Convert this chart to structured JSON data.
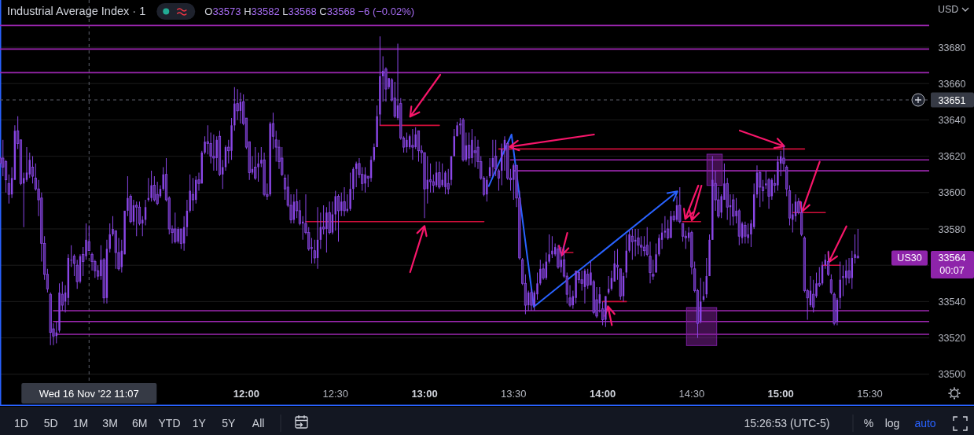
{
  "chart_data": {
    "type": "candlestick",
    "title": "Industrial Average Index · 1",
    "subtitle": "O33573 H33582 L33568 C33568 −6 (−0.02%)",
    "x": [
      "2022-11-16T10:37",
      "2022-11-16T10:38",
      "2022-11-16T10:39",
      "2022-11-16T10:40",
      "2022-11-16T10:41",
      "2022-11-16T10:42",
      "2022-11-16T10:43",
      "2022-11-16T10:44",
      "2022-11-16T10:45",
      "2022-11-16T10:46",
      "2022-11-16T10:47",
      "2022-11-16T10:48",
      "2022-11-16T10:49",
      "2022-11-16T10:50",
      "2022-11-16T10:51",
      "2022-11-16T10:52",
      "2022-11-16T10:53",
      "2022-11-16T10:54",
      "2022-11-16T10:55",
      "2022-11-16T10:56",
      "2022-11-16T10:57",
      "2022-11-16T10:58",
      "2022-11-16T10:59",
      "2022-11-16T11:00",
      "2022-11-16T11:01",
      "2022-11-16T11:02",
      "2022-11-16T11:03",
      "2022-11-16T11:04",
      "2022-11-16T11:05",
      "2022-11-16T11:06",
      "2022-11-16T11:07",
      "2022-11-16T11:08",
      "2022-11-16T11:09",
      "2022-11-16T11:10",
      "2022-11-16T11:11",
      "2022-11-16T11:12",
      "2022-11-16T11:13",
      "2022-11-16T11:14",
      "2022-11-16T11:15",
      "2022-11-16T11:16",
      "2022-11-16T11:17",
      "2022-11-16T11:18",
      "2022-11-16T11:19",
      "2022-11-16T11:20",
      "2022-11-16T11:21",
      "2022-11-16T11:22",
      "2022-11-16T11:23",
      "2022-11-16T11:24",
      "2022-11-16T11:25",
      "2022-11-16T11:26",
      "2022-11-16T11:27",
      "2022-11-16T11:28",
      "2022-11-16T11:29",
      "2022-11-16T11:30",
      "2022-11-16T11:31",
      "2022-11-16T11:32",
      "2022-11-16T11:33",
      "2022-11-16T11:34",
      "2022-11-16T11:35",
      "2022-11-16T11:36",
      "2022-11-16T11:37",
      "2022-11-16T11:38",
      "2022-11-16T11:39",
      "2022-11-16T11:40",
      "2022-11-16T11:41",
      "2022-11-16T11:42",
      "2022-11-16T11:43",
      "2022-11-16T11:44",
      "2022-11-16T11:45",
      "2022-11-16T11:46",
      "2022-11-16T11:47",
      "2022-11-16T11:48",
      "2022-11-16T11:49",
      "2022-11-16T11:50",
      "2022-11-16T11:51",
      "2022-11-16T11:52",
      "2022-11-16T11:53",
      "2022-11-16T11:54",
      "2022-11-16T11:55",
      "2022-11-16T11:56",
      "2022-11-16T11:57",
      "2022-11-16T11:58",
      "2022-11-16T11:59",
      "2022-11-16T12:00",
      "2022-11-16T12:01",
      "2022-11-16T12:02",
      "2022-11-16T12:03",
      "2022-11-16T12:04",
      "2022-11-16T12:05",
      "2022-11-16T12:06",
      "2022-11-16T12:07",
      "2022-11-16T12:08",
      "2022-11-16T12:09",
      "2022-11-16T12:10",
      "2022-11-16T12:11",
      "2022-11-16T12:12",
      "2022-11-16T12:13",
      "2022-11-16T12:14",
      "2022-11-16T12:15",
      "2022-11-16T12:16",
      "2022-11-16T12:17",
      "2022-11-16T12:18",
      "2022-11-16T12:19",
      "2022-11-16T12:20",
      "2022-11-16T12:21",
      "2022-11-16T12:22",
      "2022-11-16T12:23",
      "2022-11-16T12:24",
      "2022-11-16T12:25",
      "2022-11-16T12:26",
      "2022-11-16T12:27",
      "2022-11-16T12:28",
      "2022-11-16T12:29",
      "2022-11-16T12:30",
      "2022-11-16T12:31",
      "2022-11-16T12:32",
      "2022-11-16T12:33",
      "2022-11-16T12:34",
      "2022-11-16T12:35",
      "2022-11-16T12:36",
      "2022-11-16T12:37",
      "2022-11-16T12:38",
      "2022-11-16T12:39",
      "2022-11-16T12:40",
      "2022-11-16T12:41",
      "2022-11-16T12:42",
      "2022-11-16T12:43",
      "2022-11-16T12:44",
      "2022-11-16T12:45",
      "2022-11-16T12:46",
      "2022-11-16T12:47",
      "2022-11-16T12:48",
      "2022-11-16T12:49",
      "2022-11-16T12:50",
      "2022-11-16T12:51",
      "2022-11-16T12:52",
      "2022-11-16T12:53",
      "2022-11-16T12:54",
      "2022-11-16T12:55",
      "2022-11-16T12:56",
      "2022-11-16T12:57",
      "2022-11-16T12:58",
      "2022-11-16T12:59",
      "2022-11-16T13:00",
      "2022-11-16T13:01",
      "2022-11-16T13:02",
      "2022-11-16T13:03",
      "2022-11-16T13:04",
      "2022-11-16T13:05",
      "2022-11-16T13:06",
      "2022-11-16T13:07",
      "2022-11-16T13:08",
      "2022-11-16T13:09",
      "2022-11-16T13:10",
      "2022-11-16T13:11",
      "2022-11-16T13:12",
      "2022-11-16T13:13",
      "2022-11-16T13:14",
      "2022-11-16T13:15",
      "2022-11-16T13:16",
      "2022-11-16T13:17",
      "2022-11-16T13:18",
      "2022-11-16T13:19",
      "2022-11-16T13:20",
      "2022-11-16T13:21",
      "2022-11-16T13:22",
      "2022-11-16T13:23",
      "2022-11-16T13:24",
      "2022-11-16T13:25",
      "2022-11-16T13:26",
      "2022-11-16T13:27",
      "2022-11-16T13:28",
      "2022-11-16T13:29",
      "2022-11-16T13:30",
      "2022-11-16T13:31",
      "2022-11-16T13:32",
      "2022-11-16T13:33",
      "2022-11-16T13:34",
      "2022-11-16T13:35",
      "2022-11-16T13:36",
      "2022-11-16T13:37",
      "2022-11-16T13:38",
      "2022-11-16T13:39",
      "2022-11-16T13:40",
      "2022-11-16T13:41",
      "2022-11-16T13:42",
      "2022-11-16T13:43",
      "2022-11-16T13:44",
      "2022-11-16T13:45",
      "2022-11-16T13:46",
      "2022-11-16T13:47",
      "2022-11-16T13:48",
      "2022-11-16T13:49",
      "2022-11-16T13:50",
      "2022-11-16T13:51",
      "2022-11-16T13:52",
      "2022-11-16T13:53",
      "2022-11-16T13:54",
      "2022-11-16T13:55",
      "2022-11-16T13:56",
      "2022-11-16T13:57",
      "2022-11-16T13:58",
      "2022-11-16T13:59",
      "2022-11-16T14:00",
      "2022-11-16T14:01",
      "2022-11-16T14:02",
      "2022-11-16T14:03",
      "2022-11-16T14:04",
      "2022-11-16T14:05",
      "2022-11-16T14:06",
      "2022-11-16T14:07",
      "2022-11-16T14:08",
      "2022-11-16T14:09",
      "2022-11-16T14:10",
      "2022-11-16T14:11",
      "2022-11-16T14:12",
      "2022-11-16T14:13",
      "2022-11-16T14:14",
      "2022-11-16T14:15",
      "2022-11-16T14:16",
      "2022-11-16T14:17",
      "2022-11-16T14:18",
      "2022-11-16T14:19",
      "2022-11-16T14:20",
      "2022-11-16T14:21",
      "2022-11-16T14:22",
      "2022-11-16T14:23",
      "2022-11-16T14:24",
      "2022-11-16T14:25",
      "2022-11-16T14:26",
      "2022-11-16T14:27",
      "2022-11-16T14:28",
      "2022-11-16T14:29",
      "2022-11-16T14:30",
      "2022-11-16T14:31",
      "2022-11-16T14:32",
      "2022-11-16T14:33",
      "2022-11-16T14:34",
      "2022-11-16T14:35",
      "2022-11-16T14:36",
      "2022-11-16T14:37",
      "2022-11-16T14:38",
      "2022-11-16T14:39",
      "2022-11-16T14:40",
      "2022-11-16T14:41",
      "2022-11-16T14:42",
      "2022-11-16T14:43",
      "2022-11-16T14:44",
      "2022-11-16T14:45",
      "2022-11-16T14:46",
      "2022-11-16T14:47",
      "2022-11-16T14:48",
      "2022-11-16T14:49",
      "2022-11-16T14:50",
      "2022-11-16T14:51",
      "2022-11-16T14:52",
      "2022-11-16T14:53",
      "2022-11-16T14:54",
      "2022-11-16T14:55",
      "2022-11-16T14:56",
      "2022-11-16T14:57",
      "2022-11-16T14:58",
      "2022-11-16T14:59",
      "2022-11-16T15:00",
      "2022-11-16T15:01",
      "2022-11-16T15:02",
      "2022-11-16T15:03",
      "2022-11-16T15:04",
      "2022-11-16T15:05",
      "2022-11-16T15:06",
      "2022-11-16T15:07",
      "2022-11-16T15:08",
      "2022-11-16T15:09",
      "2022-11-16T15:10",
      "2022-11-16T15:11",
      "2022-11-16T15:12",
      "2022-11-16T15:13",
      "2022-11-16T15:14",
      "2022-11-16T15:15",
      "2022-11-16T15:16",
      "2022-11-16T15:17",
      "2022-11-16T15:18",
      "2022-11-16T15:19",
      "2022-11-16T15:20",
      "2022-11-16T15:21",
      "2022-11-16T15:22",
      "2022-11-16T15:23",
      "2022-11-16T15:24",
      "2022-11-16T15:25",
      "2022-11-16T15:26"
    ],
    "ohlc": [
      [
        33619,
        33620,
        33614,
        33616
      ],
      [
        33619,
        33629,
        33609,
        33614
      ],
      [
        33617,
        33618,
        33600,
        33607
      ],
      [
        33605,
        33610,
        33594,
        33599
      ],
      [
        33599,
        33614,
        33597,
        33608
      ],
      [
        33607,
        33637,
        33607,
        33634
      ],
      [
        33634,
        33642,
        33624,
        33627
      ],
      [
        33629,
        33629,
        33604,
        33605
      ],
      [
        33605,
        33611,
        33581,
        33608
      ],
      [
        33607,
        33625,
        33606,
        33611
      ],
      [
        33610,
        33622,
        33608,
        33618
      ],
      [
        33614,
        33620,
        33605,
        33609
      ],
      [
        33608,
        33616,
        33601,
        33602
      ],
      [
        33602,
        33607,
        33587,
        33596
      ],
      [
        33597,
        33600,
        33562,
        33572
      ],
      [
        33572,
        33576,
        33552,
        33555
      ],
      [
        33555,
        33558,
        33545,
        33547
      ],
      [
        33544,
        33545,
        33516,
        33523
      ],
      [
        33525,
        33528,
        33516,
        33521
      ],
      [
        33521,
        33529,
        33517,
        33523
      ],
      [
        33524,
        33550,
        33523,
        33545
      ],
      [
        33544,
        33551,
        33535,
        33538
      ],
      [
        33540,
        33549,
        33534,
        33545
      ],
      [
        33542,
        33566,
        33538,
        33564
      ],
      [
        33563,
        33571,
        33559,
        33563
      ],
      [
        33565,
        33566,
        33554,
        33561
      ],
      [
        33560,
        33563,
        33547,
        33551
      ],
      [
        33551,
        33566,
        33550,
        33565
      ],
      [
        33566,
        33570,
        33554,
        33562
      ],
      [
        33565,
        33583,
        33563,
        33574
      ],
      [
        33573,
        33582,
        33568,
        33568
      ],
      [
        33566,
        33567,
        33557,
        33562
      ],
      [
        33562,
        33563,
        33553,
        33557
      ],
      [
        33557,
        33560,
        33552,
        33554
      ],
      [
        33554,
        33571,
        33552,
        33563
      ],
      [
        33563,
        33564,
        33539,
        33542
      ],
      [
        33542,
        33574,
        33539,
        33569
      ],
      [
        33569,
        33583,
        33567,
        33577
      ],
      [
        33577,
        33587,
        33576,
        33580
      ],
      [
        33579,
        33579,
        33558,
        33567
      ],
      [
        33567,
        33575,
        33557,
        33558
      ],
      [
        33559,
        33574,
        33556,
        33568
      ],
      [
        33566,
        33590,
        33566,
        33590
      ],
      [
        33590,
        33609,
        33587,
        33597
      ],
      [
        33598,
        33599,
        33583,
        33584
      ],
      [
        33584,
        33596,
        33582,
        33593
      ],
      [
        33593,
        33595,
        33576,
        33592
      ],
      [
        33592,
        33595,
        33582,
        33583
      ],
      [
        33583,
        33587,
        33576,
        33585
      ],
      [
        33585,
        33596,
        33582,
        33592
      ],
      [
        33596,
        33608,
        33595,
        33597
      ],
      [
        33597,
        33612,
        33595,
        33604
      ],
      [
        33604,
        33609,
        33595,
        33596
      ],
      [
        33599,
        33606,
        33593,
        33594
      ],
      [
        33598,
        33604,
        33597,
        33602
      ],
      [
        33602,
        33614,
        33601,
        33610
      ],
      [
        33610,
        33619,
        33595,
        33596
      ],
      [
        33597,
        33598,
        33577,
        33580
      ],
      [
        33580,
        33582,
        33572,
        33578
      ],
      [
        33580,
        33589,
        33572,
        33573
      ],
      [
        33573,
        33581,
        33572,
        33580
      ],
      [
        33580,
        33580,
        33569,
        33572
      ],
      [
        33572,
        33587,
        33568,
        33581
      ],
      [
        33581,
        33596,
        33576,
        33590
      ],
      [
        33590,
        33610,
        33589,
        33601
      ],
      [
        33599,
        33608,
        33590,
        33596
      ],
      [
        33596,
        33609,
        33594,
        33607
      ],
      [
        33607,
        33611,
        33601,
        33605
      ],
      [
        33605,
        33623,
        33605,
        33622
      ],
      [
        33622,
        33631,
        33621,
        33628
      ],
      [
        33628,
        33637,
        33621,
        33627
      ],
      [
        33627,
        33633,
        33616,
        33620
      ],
      [
        33620,
        33632,
        33612,
        33619
      ],
      [
        33619,
        33631,
        33612,
        33629
      ],
      [
        33631,
        33634,
        33609,
        33610
      ],
      [
        33610,
        33618,
        33602,
        33614
      ],
      [
        33614,
        33626,
        33612,
        33625
      ],
      [
        33625,
        33629,
        33616,
        33623
      ],
      [
        33623,
        33641,
        33618,
        33637
      ],
      [
        33637,
        33658,
        33634,
        33649
      ],
      [
        33649,
        33657,
        33640,
        33645
      ],
      [
        33645,
        33655,
        33638,
        33650
      ],
      [
        33650,
        33654,
        33637,
        33638
      ],
      [
        33641,
        33641,
        33624,
        33625
      ],
      [
        33628,
        33628,
        33607,
        33611
      ],
      [
        33611,
        33620,
        33610,
        33613
      ],
      [
        33614,
        33625,
        33607,
        33608
      ],
      [
        33614,
        33622,
        33606,
        33616
      ],
      [
        33616,
        33625,
        33614,
        33618
      ],
      [
        33618,
        33622,
        33598,
        33599
      ],
      [
        33599,
        33605,
        33596,
        33598
      ],
      [
        33599,
        33639,
        33598,
        33638
      ],
      [
        33638,
        33644,
        33624,
        33631
      ],
      [
        33629,
        33634,
        33617,
        33625
      ],
      [
        33625,
        33629,
        33613,
        33617
      ],
      [
        33619,
        33625,
        33609,
        33610
      ],
      [
        33608,
        33610,
        33596,
        33602
      ],
      [
        33603,
        33610,
        33592,
        33593
      ],
      [
        33593,
        33599,
        33583,
        33585
      ],
      [
        33585,
        33599,
        33583,
        33595
      ],
      [
        33595,
        33602,
        33586,
        33590
      ],
      [
        33590,
        33596,
        33582,
        33583
      ],
      [
        33583,
        33587,
        33574,
        33584
      ],
      [
        33583,
        33599,
        33577,
        33578
      ],
      [
        33578,
        33581,
        33568,
        33569
      ],
      [
        33569,
        33575,
        33561,
        33570
      ],
      [
        33568,
        33574,
        33561,
        33564
      ],
      [
        33564,
        33592,
        33558,
        33574
      ],
      [
        33574,
        33589,
        33569,
        33581
      ],
      [
        33581,
        33593,
        33577,
        33580
      ],
      [
        33580,
        33592,
        33567,
        33589
      ],
      [
        33589,
        33595,
        33577,
        33578
      ],
      [
        33578,
        33595,
        33577,
        33588
      ],
      [
        33588,
        33601,
        33579,
        33598
      ],
      [
        33598,
        33599,
        33573,
        33590
      ],
      [
        33590,
        33600,
        33587,
        33595
      ],
      [
        33595,
        33603,
        33587,
        33590
      ],
      [
        33590,
        33599,
        33589,
        33591
      ],
      [
        33591,
        33611,
        33590,
        33602
      ],
      [
        33602,
        33614,
        33596,
        33613
      ],
      [
        33613,
        33617,
        33603,
        33616
      ],
      [
        33616,
        33619,
        33608,
        33610
      ],
      [
        33610,
        33614,
        33601,
        33605
      ],
      [
        33605,
        33614,
        33600,
        33610
      ],
      [
        33609,
        33609,
        33603,
        33608
      ],
      [
        33608,
        33620,
        33606,
        33618
      ],
      [
        33618,
        33627,
        33617,
        33625
      ],
      [
        33625,
        33648,
        33625,
        33642
      ],
      [
        33643,
        33686,
        33637,
        33664
      ],
      [
        33664,
        33675,
        33650,
        33667
      ],
      [
        33668,
        33669,
        33650,
        33657
      ],
      [
        33658,
        33663,
        33657,
        33663
      ],
      [
        33662,
        33663,
        33650,
        33651
      ],
      [
        33652,
        33661,
        33641,
        33642
      ],
      [
        33641,
        33682,
        33640,
        33648
      ],
      [
        33649,
        33652,
        33629,
        33630
      ],
      [
        33630,
        33631,
        33622,
        33625
      ],
      [
        33625,
        33633,
        33622,
        33629
      ],
      [
        33625,
        33632,
        33624,
        33631
      ],
      [
        33626,
        33635,
        33618,
        33625
      ],
      [
        33625,
        33636,
        33624,
        33632
      ],
      [
        33634,
        33634,
        33617,
        33623
      ],
      [
        33623,
        33626,
        33616,
        33622
      ],
      [
        33622,
        33622,
        33586,
        33602
      ],
      [
        33602,
        33620,
        33594,
        33607
      ],
      [
        33607,
        33616,
        33600,
        33606
      ],
      [
        33606,
        33610,
        33600,
        33604
      ],
      [
        33604,
        33617,
        33603,
        33611
      ],
      [
        33611,
        33617,
        33602,
        33603
      ],
      [
        33604,
        33616,
        33603,
        33607
      ],
      [
        33603,
        33612,
        33599,
        33611
      ],
      [
        33605,
        33613,
        33599,
        33602
      ],
      [
        33607,
        33620,
        33604,
        33620
      ],
      [
        33620,
        33635,
        33620,
        33631
      ],
      [
        33631,
        33639,
        33631,
        33637
      ],
      [
        33637,
        33641,
        33632,
        33638
      ],
      [
        33640,
        33641,
        33617,
        33618
      ],
      [
        33618,
        33633,
        33617,
        33626
      ],
      [
        33626,
        33633,
        33615,
        33619
      ],
      [
        33619,
        33635,
        33616,
        33629
      ],
      [
        33623,
        33631,
        33614,
        33622
      ],
      [
        33625,
        33629,
        33613,
        33617
      ],
      [
        33617,
        33620,
        33607,
        33608
      ],
      [
        33608,
        33609,
        33598,
        33599
      ],
      [
        33599,
        33609,
        33595,
        33607
      ],
      [
        33609,
        33619,
        33608,
        33614
      ],
      [
        33614,
        33629,
        33609,
        33619
      ],
      [
        33620,
        33629,
        33609,
        33613
      ],
      [
        33612,
        33613,
        33601,
        33608
      ],
      [
        33612,
        33627,
        33604,
        33624
      ],
      [
        33623,
        33631,
        33612,
        33629
      ],
      [
        33627,
        33628,
        33607,
        33608
      ],
      [
        33608,
        33613,
        33601,
        33607
      ],
      [
        33607,
        33616,
        33596,
        33615
      ],
      [
        33615,
        33615,
        33592,
        33597
      ],
      [
        33597,
        33601,
        33563,
        33564
      ],
      [
        33563,
        33564,
        33549,
        33550
      ],
      [
        33550,
        33555,
        33533,
        33538
      ],
      [
        33538,
        33546,
        33535,
        33545
      ],
      [
        33545,
        33547,
        33535,
        33538
      ],
      [
        33538,
        33546,
        33535,
        33545
      ],
      [
        33544,
        33556,
        33541,
        33550
      ],
      [
        33550,
        33563,
        33549,
        33558
      ],
      [
        33558,
        33561,
        33552,
        33553
      ],
      [
        33553,
        33567,
        33552,
        33562
      ],
      [
        33562,
        33577,
        33561,
        33566
      ],
      [
        33566,
        33576,
        33564,
        33568
      ],
      [
        33566,
        33572,
        33565,
        33570
      ],
      [
        33569,
        33571,
        33558,
        33559
      ],
      [
        33559,
        33570,
        33556,
        33563
      ],
      [
        33563,
        33571,
        33553,
        33554
      ],
      [
        33554,
        33556,
        33539,
        33544
      ],
      [
        33542,
        33549,
        33537,
        33538
      ],
      [
        33538,
        33546,
        33536,
        33543
      ],
      [
        33542,
        33557,
        33539,
        33557
      ],
      [
        33556,
        33557,
        33550,
        33552
      ],
      [
        33552,
        33557,
        33546,
        33550
      ],
      [
        33548,
        33558,
        33539,
        33557
      ],
      [
        33555,
        33558,
        33547,
        33549
      ],
      [
        33549,
        33562,
        33549,
        33556
      ],
      [
        33551,
        33552,
        33533,
        33534
      ],
      [
        33541,
        33548,
        33531,
        33532
      ],
      [
        33539,
        33548,
        33534,
        33544
      ],
      [
        33536,
        33540,
        33527,
        33530
      ],
      [
        33530,
        33543,
        33526,
        33543
      ],
      [
        33545,
        33554,
        33544,
        33547
      ],
      [
        33547,
        33557,
        33546,
        33553
      ],
      [
        33551,
        33568,
        33551,
        33561
      ],
      [
        33560,
        33569,
        33552,
        33559
      ],
      [
        33558,
        33558,
        33541,
        33543
      ],
      [
        33543,
        33556,
        33540,
        33554
      ],
      [
        33556,
        33577,
        33553,
        33568
      ],
      [
        33568,
        33579,
        33567,
        33577
      ],
      [
        33576,
        33580,
        33563,
        33573
      ],
      [
        33573,
        33580,
        33565,
        33574
      ],
      [
        33575,
        33580,
        33566,
        33571
      ],
      [
        33571,
        33576,
        33565,
        33570
      ],
      [
        33570,
        33576,
        33565,
        33568
      ],
      [
        33571,
        33581,
        33565,
        33566
      ],
      [
        33565,
        33573,
        33550,
        33556
      ],
      [
        33555,
        33563,
        33552,
        33554
      ],
      [
        33556,
        33572,
        33556,
        33566
      ],
      [
        33566,
        33577,
        33565,
        33575
      ],
      [
        33574,
        33583,
        33569,
        33578
      ],
      [
        33578,
        33587,
        33575,
        33579
      ],
      [
        33580,
        33585,
        33574,
        33575
      ],
      [
        33575,
        33590,
        33575,
        33587
      ],
      [
        33587,
        33590,
        33584,
        33585
      ],
      [
        33585,
        33598,
        33584,
        33593
      ],
      [
        33593,
        33603,
        33583,
        33584
      ],
      [
        33583,
        33583,
        33573,
        33576
      ],
      [
        33576,
        33579,
        33569,
        33575
      ],
      [
        33575,
        33581,
        33573,
        33578
      ],
      [
        33578,
        33579,
        33555,
        33559
      ],
      [
        33558,
        33562,
        33545,
        33546
      ],
      [
        33546,
        33547,
        33520,
        33528
      ],
      [
        33529,
        33553,
        33528,
        33540
      ],
      [
        33541,
        33551,
        33540,
        33543
      ],
      [
        33544,
        33564,
        33542,
        33554
      ],
      [
        33554,
        33577,
        33554,
        33574
      ],
      [
        33574,
        33620,
        33574,
        33607
      ],
      [
        33605,
        33612,
        33590,
        33596
      ],
      [
        33596,
        33603,
        33586,
        33587
      ],
      [
        33589,
        33599,
        33586,
        33598
      ],
      [
        33596,
        33616,
        33596,
        33605
      ],
      [
        33605,
        33608,
        33585,
        33592
      ],
      [
        33592,
        33599,
        33582,
        33593
      ],
      [
        33596,
        33599,
        33582,
        33587
      ],
      [
        33587,
        33597,
        33583,
        33590
      ],
      [
        33590,
        33591,
        33571,
        33576
      ],
      [
        33575,
        33584,
        33572,
        33583
      ],
      [
        33582,
        33584,
        33572,
        33576
      ],
      [
        33575,
        33583,
        33572,
        33577
      ],
      [
        33577,
        33585,
        33570,
        33583
      ],
      [
        33581,
        33605,
        33580,
        33599
      ],
      [
        33599,
        33615,
        33597,
        33611
      ],
      [
        33611,
        33612,
        33592,
        33603
      ],
      [
        33603,
        33607,
        33595,
        33601
      ],
      [
        33604,
        33612,
        33602,
        33605
      ],
      [
        33607,
        33608,
        33591,
        33598
      ],
      [
        33598,
        33608,
        33596,
        33607
      ],
      [
        33605,
        33610,
        33600,
        33604
      ],
      [
        33604,
        33620,
        33601,
        33617
      ],
      [
        33616,
        33623,
        33609,
        33620
      ],
      [
        33619,
        33626,
        33612,
        33616
      ],
      [
        33614,
        33615,
        33598,
        33602
      ],
      [
        33601,
        33604,
        33582,
        33586
      ],
      [
        33585,
        33594,
        33578,
        33588
      ],
      [
        33587,
        33599,
        33584,
        33595
      ],
      [
        33595,
        33597,
        33588,
        33589
      ],
      [
        33589,
        33595,
        33576,
        33577
      ],
      [
        33575,
        33576,
        33545,
        33546
      ],
      [
        33546,
        33547,
        33530,
        33542
      ],
      [
        33538,
        33554,
        33537,
        33546
      ],
      [
        33544,
        33552,
        33534,
        33537
      ],
      [
        33543,
        33556,
        33542,
        33550
      ],
      [
        33550,
        33559,
        33548,
        33549
      ],
      [
        33550,
        33562,
        33549,
        33560
      ],
      [
        33560,
        33566,
        33558,
        33563
      ],
      [
        33562,
        33568,
        33554,
        33555
      ],
      [
        33552,
        33555,
        33544,
        33545
      ],
      [
        33544,
        33545,
        33527,
        33528
      ],
      [
        33529,
        33542,
        33527,
        33541
      ],
      [
        33542,
        33562,
        33536,
        33552
      ],
      [
        33553,
        33560,
        33543,
        33554
      ],
      [
        33553,
        33563,
        33549,
        33557
      ],
      [
        33557,
        33564,
        33550,
        33553
      ],
      [
        33553,
        33568,
        33547,
        33564
      ],
      [
        33564,
        33577,
        33561,
        33566
      ],
      [
        33565,
        33580,
        33564,
        33564
      ]
    ],
    "color": "#8a46e6",
    "xlim": [
      "2022-11-16T10:37",
      "2022-11-16T15:50"
    ],
    "xticks": [
      {
        "value": "2022-11-16T12:00",
        "label": "12:00"
      },
      {
        "value": "2022-11-16T12:30",
        "label": "12:30"
      },
      {
        "value": "2022-11-16T13:00",
        "label": "13:00"
      },
      {
        "value": "2022-11-16T13:30",
        "label": "13:30"
      },
      {
        "value": "2022-11-16T14:00",
        "label": "14:00"
      },
      {
        "value": "2022-11-16T14:30",
        "label": "14:30"
      },
      {
        "value": "2022-11-16T15:00",
        "label": "15:00"
      },
      {
        "value": "2022-11-16T15:30",
        "label": "15:30"
      }
    ],
    "ylim": [
      33496,
      33706
    ],
    "yticks": [
      33500,
      33520,
      33540,
      {
        "value": 33560,
        "label": null
      },
      33580,
      33600,
      33620,
      33640,
      33660,
      33680
    ],
    "grid": "y",
    "series": [
      {
        "type": "line",
        "x": [
          "2022-11-16T13:29",
          "2022-11-16T15:50"
        ],
        "values": [
          33618,
          33618
        ],
        "color": "#9c27b0"
      },
      {
        "type": "line",
        "x": [
          "2022-11-16T13:30",
          "2022-11-16T15:50"
        ],
        "values": [
          33612,
          33612
        ],
        "color": "#9c27b0"
      },
      {
        "type": "line",
        "x": [
          "2022-11-16T10:55",
          "2022-11-16T15:50"
        ],
        "values": [
          33535,
          33535
        ],
        "color": "#9c27b0"
      },
      {
        "type": "line",
        "x": [
          "2022-11-16T10:55",
          "2022-11-16T15:50"
        ],
        "values": [
          33529,
          33529
        ],
        "color": "#9c27b0"
      },
      {
        "type": "line",
        "x": [
          "2022-11-16T10:56",
          "2022-11-16T15:50"
        ],
        "values": [
          33522,
          33522
        ],
        "color": "#9c27b0"
      },
      {
        "type": "line",
        "x": [
          "2022-11-16T12:45",
          "2022-11-16T13:05"
        ],
        "values": [
          33637,
          33637
        ],
        "color": "#d10f3a"
      },
      {
        "type": "line",
        "x": [
          "2022-11-16T12:20",
          "2022-11-16T13:20"
        ],
        "values": [
          33584,
          33584
        ],
        "color": "#d10f3a"
      },
      {
        "type": "line",
        "x": [
          "2022-11-16T13:25",
          "2022-11-16T15:08"
        ],
        "values": [
          33624,
          33624
        ],
        "color": "#d10f3a"
      },
      {
        "type": "line",
        "x": [
          "2022-11-16T13:46",
          "2022-11-16T13:50"
        ],
        "values": [
          33567,
          33567
        ],
        "color": "#d10f3a"
      },
      {
        "type": "line",
        "x": [
          "2022-11-16T14:00",
          "2022-11-16T14:08"
        ],
        "values": [
          33540,
          33540
        ],
        "color": "#d10f3a"
      },
      {
        "type": "line",
        "x": [
          "2022-11-16T14:27",
          "2022-11-16T14:33"
        ],
        "values": [
          33584,
          33584
        ],
        "color": "#d10f3a"
      },
      {
        "type": "line",
        "x": [
          "2022-11-16T15:04",
          "2022-11-16T15:15"
        ],
        "values": [
          33589,
          33589
        ],
        "color": "#d10f3a"
      },
      {
        "type": "line",
        "x": [
          "2022-11-16T15:14",
          "2022-11-16T15:20"
        ],
        "values": [
          33560,
          33560
        ],
        "color": "#d10f3a"
      }
    ],
    "ref_lines": [
      {
        "axis": "y",
        "value": 33692,
        "color": "#9c27b0"
      },
      {
        "axis": "y",
        "value": 33679,
        "color": "#9c27b0"
      },
      {
        "axis": "y",
        "value": 33666,
        "color": "#9c27b0"
      },
      {
        "axis": "x",
        "value": "2022-11-16T11:07",
        "label": "Wed 16 Nov '22 11:07",
        "color": "#5d606b",
        "line_style": "dashed"
      },
      {
        "axis": "y",
        "value": 33651,
        "label": "33651",
        "color": "#5d606b",
        "line_style": "dashed"
      }
    ],
    "annotations": [
      "US30",
      "33564",
      "00:07",
      "USD",
      "1D",
      "5D",
      "1M",
      "3M",
      "6M",
      "YTD",
      "1Y",
      "5Y",
      "All",
      "15:26:53 (UTC-5)",
      "%",
      "log",
      "auto"
    ]
  }
}
